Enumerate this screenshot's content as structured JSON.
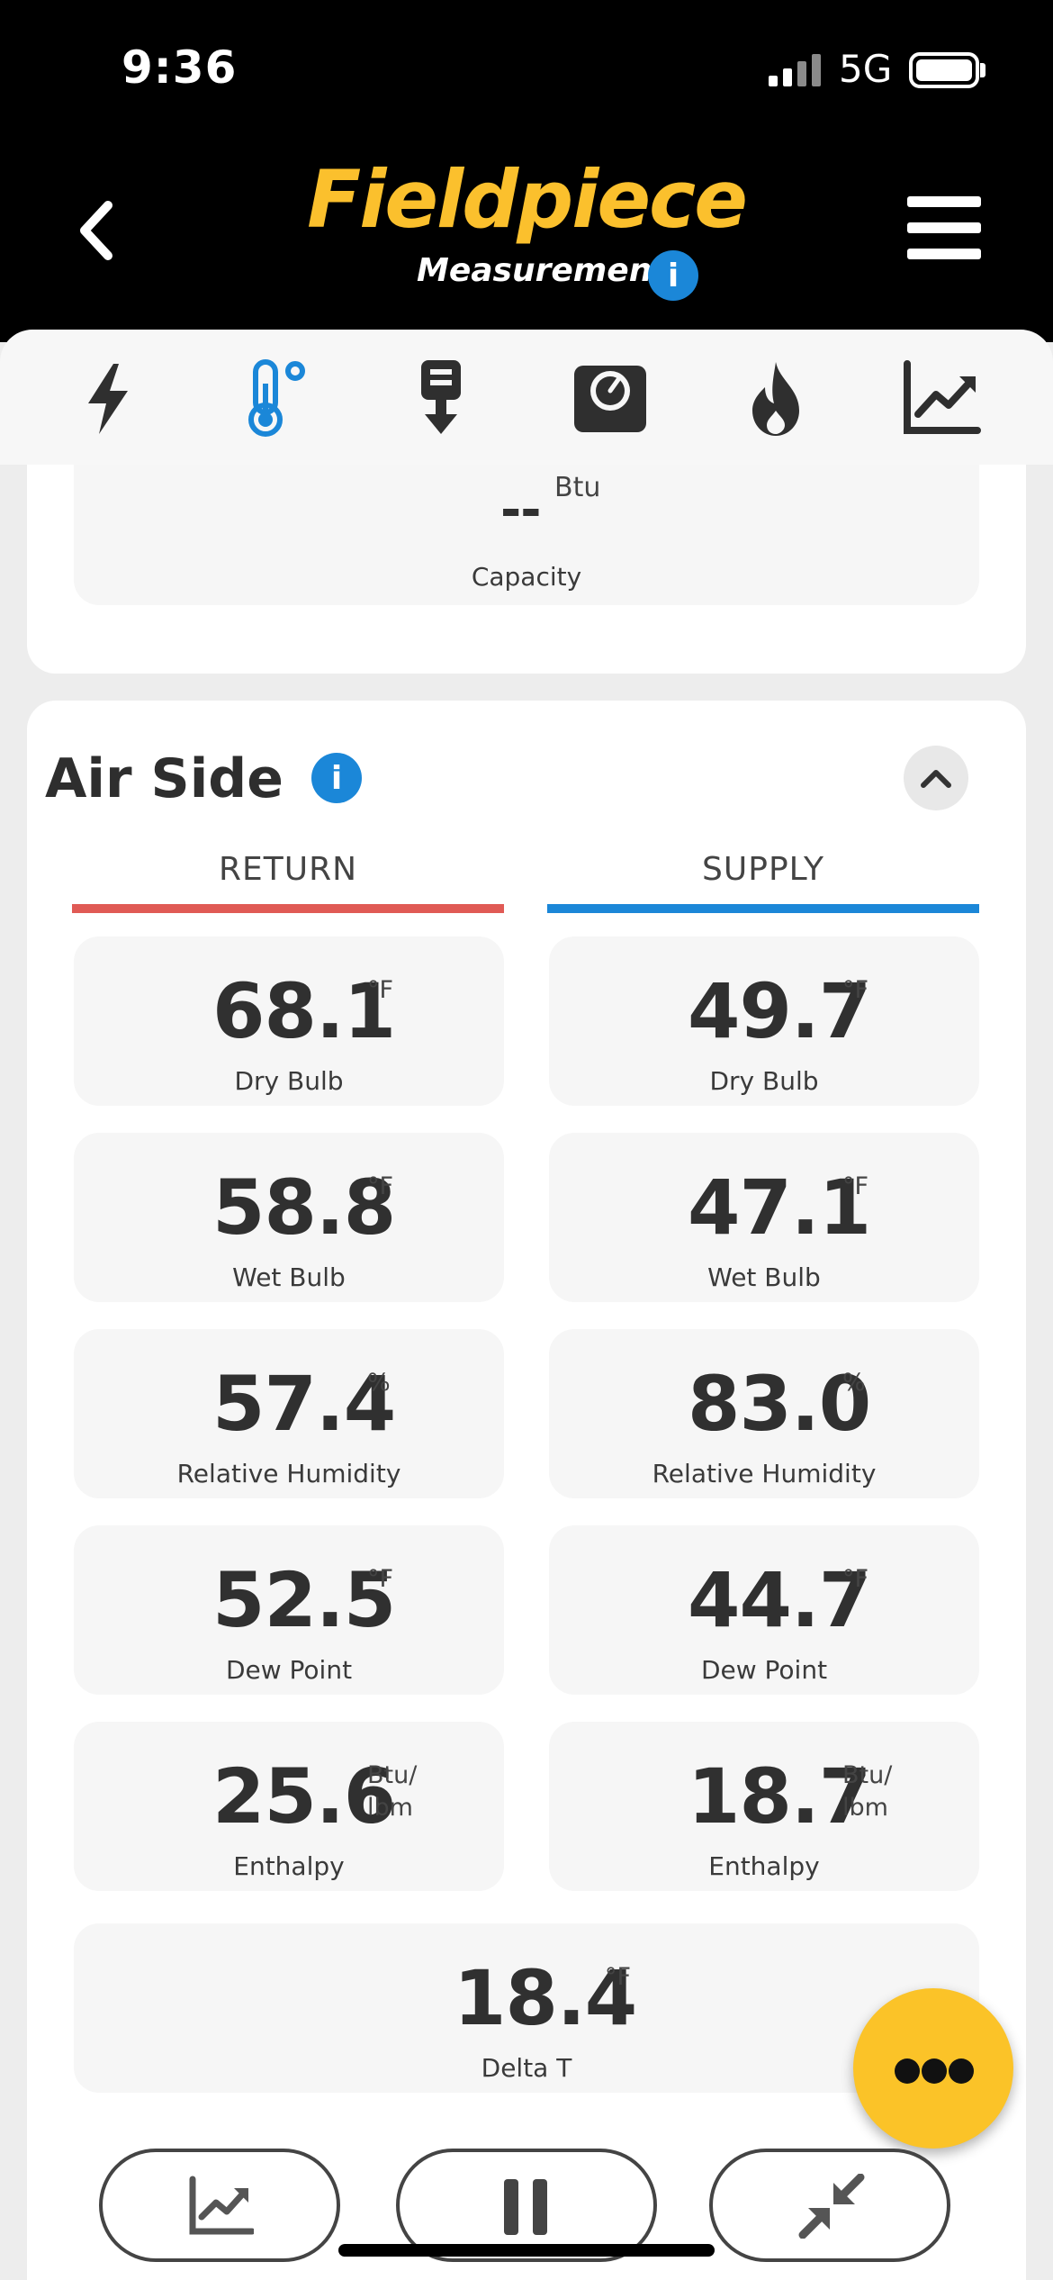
{
  "status_bar": {
    "time": "9:36",
    "network": "5G"
  },
  "header": {
    "logo": "Fieldpiece",
    "subtitle": "Measurements",
    "info_glyph": "i",
    "back_icon": "chevron-left-icon",
    "menu_icon": "hamburger-menu-icon"
  },
  "tabs": [
    {
      "icon": "lightning-icon"
    },
    {
      "icon": "thermometer-icon",
      "active": true
    },
    {
      "icon": "download-device-icon"
    },
    {
      "icon": "gauge-icon"
    },
    {
      "icon": "flame-icon"
    },
    {
      "icon": "chart-icon"
    }
  ],
  "capacity": {
    "value": "--",
    "unit": "Btu",
    "label": "Capacity"
  },
  "air_side": {
    "title": "Air Side",
    "info_glyph": "i",
    "return_label": "RETURN",
    "supply_label": "SUPPLY",
    "return_color": "#e05a55",
    "supply_color": "#1b87d8",
    "return": [
      {
        "value": "68.1",
        "unit": "°F",
        "label": "Dry Bulb"
      },
      {
        "value": "58.8",
        "unit": "°F",
        "label": "Wet Bulb"
      },
      {
        "value": "57.4",
        "unit": "%",
        "label": "Relative Humidity"
      },
      {
        "value": "52.5",
        "unit": "°F",
        "label": "Dew Point"
      },
      {
        "value": "25.6",
        "unit": "Btu/",
        "unit2": "lbm",
        "label": "Enthalpy"
      }
    ],
    "supply": [
      {
        "value": "49.7",
        "unit": "°F",
        "label": "Dry Bulb"
      },
      {
        "value": "47.1",
        "unit": "°F",
        "label": "Wet Bulb"
      },
      {
        "value": "83.0",
        "unit": "%",
        "label": "Relative Humidity"
      },
      {
        "value": "44.7",
        "unit": "°F",
        "label": "Dew Point"
      },
      {
        "value": "18.7",
        "unit": "Btu/",
        "unit2": "lbm",
        "label": "Enthalpy"
      }
    ],
    "delta_t": {
      "value": "18.4",
      "unit": "°F",
      "label": "Delta T"
    }
  },
  "bottom_controls": [
    {
      "icon": "chart-icon"
    },
    {
      "icon": "pause-icon"
    },
    {
      "icon": "compress-icon"
    }
  ],
  "fab": {
    "icon": "more-dots-icon"
  },
  "colors": {
    "brand_yellow": "#fbc02d",
    "accent_blue": "#1b87d8",
    "return_red": "#e05a55"
  }
}
